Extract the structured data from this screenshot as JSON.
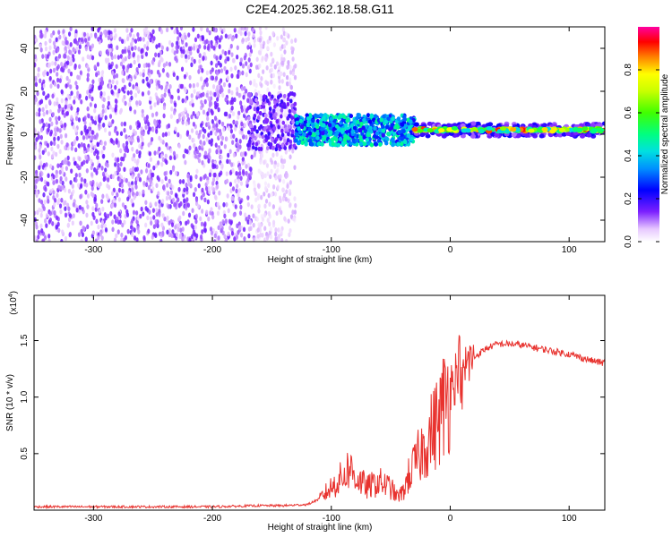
{
  "title": "C2E4.2025.362.18.58.G11",
  "chart_data": [
    {
      "type": "heatmap",
      "xlabel": "Height of straight line (km)",
      "ylabel": "Frequency (Hz)",
      "xlim": [
        -350,
        130
      ],
      "ylim": [
        -50,
        50
      ],
      "xticks": [
        -300,
        -200,
        -100,
        0,
        100
      ],
      "yticks": [
        -40,
        -20,
        0,
        20,
        40
      ],
      "xtick_labels": [
        "-300",
        "-200",
        "-100",
        "0",
        "100"
      ],
      "ytick_labels": [
        "-40",
        "-20",
        "0",
        "20",
        "40"
      ],
      "colorbar": {
        "label": "Normalized spectral amplitude",
        "range": [
          0,
          1
        ],
        "ticks": [
          0.0,
          0.2,
          0.4,
          0.6,
          0.8
        ],
        "tick_labels": [
          "0.0",
          "0.2",
          "0.4",
          "0.6",
          "0.8"
        ]
      },
      "features": [
        {
          "x_range": [
            -350,
            -130
          ],
          "freq_range": [
            -50,
            50
          ],
          "description_level": 0.15
        },
        {
          "x_range": [
            -170,
            -130
          ],
          "freq_center": 6,
          "level": 0.2
        },
        {
          "x_range": [
            -130,
            -30
          ],
          "freq_center": 2,
          "level": 0.5
        },
        {
          "x_range": [
            -30,
            130
          ],
          "freq_center": 2,
          "level": 0.95
        }
      ]
    },
    {
      "type": "line",
      "xlabel": "Height of straight line (km)",
      "ylabel": "SNR (10 * v/v)",
      "yscale_label": "(x10",
      "yscale_exp": "4",
      "xlim": [
        -350,
        130
      ],
      "ylim": [
        0,
        1.9
      ],
      "xticks": [
        -300,
        -200,
        -100,
        0,
        100
      ],
      "yticks": [
        0.5,
        1.0,
        1.5
      ],
      "xtick_labels": [
        "-300",
        "-200",
        "-100",
        "0",
        "100"
      ],
      "ytick_labels": [
        "0.5",
        "1.0",
        "1.5"
      ],
      "color": "#e8322e",
      "series": [
        {
          "x": [
            -350,
            -300,
            -250,
            -200,
            -160,
            -140,
            -120,
            -110,
            -100,
            -90,
            -85,
            -80,
            -75,
            -70,
            -60,
            -50,
            -45,
            -40,
            -35,
            -30,
            -25,
            -20,
            -15,
            -10,
            -5,
            0,
            5,
            8,
            10,
            12,
            15,
            20,
            30,
            40,
            50,
            60,
            70,
            80,
            90,
            100,
            110,
            120,
            130
          ],
          "y": [
            0.03,
            0.03,
            0.03,
            0.03,
            0.04,
            0.04,
            0.05,
            0.1,
            0.2,
            0.3,
            0.38,
            0.3,
            0.25,
            0.2,
            0.25,
            0.2,
            0.12,
            0.15,
            0.3,
            0.4,
            0.5,
            0.6,
            0.7,
            0.8,
            0.95,
            1.1,
            1.2,
            1.35,
            1.0,
            1.25,
            1.3,
            1.35,
            1.43,
            1.47,
            1.47,
            1.46,
            1.44,
            1.42,
            1.4,
            1.38,
            1.35,
            1.32,
            1.3
          ]
        }
      ]
    }
  ]
}
